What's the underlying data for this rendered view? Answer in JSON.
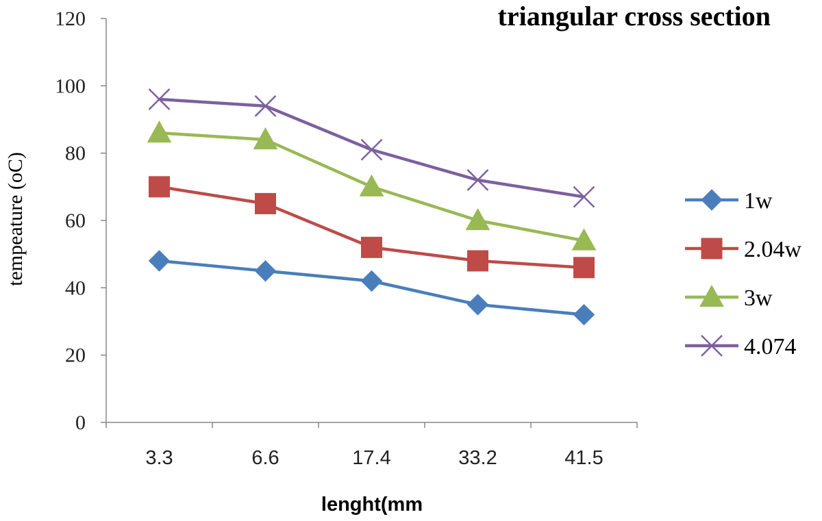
{
  "chart_data": {
    "type": "line",
    "title": "triangular cross section",
    "xlabel": "lenght(mm",
    "ylabel": "tempeature (oC)",
    "categories": [
      "3.3",
      "6.6",
      "17.4",
      "33.2",
      "41.5"
    ],
    "ylim": [
      0,
      120
    ],
    "yticks": [
      0,
      20,
      40,
      60,
      80,
      100,
      120
    ],
    "grid": false,
    "legend_position": "right",
    "series": [
      {
        "name": "1w",
        "color": "#4a7ebb",
        "marker": "diamond",
        "values": [
          48,
          45,
          42,
          35,
          32
        ]
      },
      {
        "name": "2.04w",
        "color": "#be4b48",
        "marker": "square",
        "values": [
          70,
          65,
          52,
          48,
          46
        ]
      },
      {
        "name": "3w",
        "color": "#98b954",
        "marker": "triangle",
        "values": [
          86,
          84,
          70,
          60,
          54
        ]
      },
      {
        "name": "4.074",
        "color": "#7d60a0",
        "marker": "x",
        "values": [
          96,
          94,
          81,
          72,
          67
        ]
      }
    ]
  }
}
